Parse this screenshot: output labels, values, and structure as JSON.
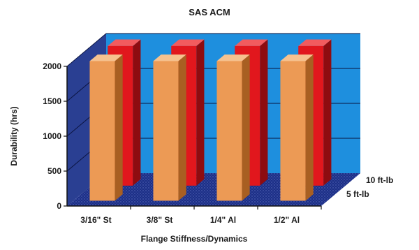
{
  "chart_data": {
    "type": "bar",
    "title": "SAS ACM",
    "xlabel": "Flange Stiffness/Dynamics",
    "ylabel": "Durability (hrs)",
    "categories": [
      "3/16\" St",
      "3/8\" St",
      "1/4\" Al",
      "1/2\" Al"
    ],
    "series": [
      {
        "name": "5 ft-lb",
        "values": [
          2000,
          2000,
          2000,
          2000
        ]
      },
      {
        "name": "10 ft-lb",
        "values": [
          2000,
          2000,
          2000,
          2000
        ]
      }
    ],
    "yticks": [
      0,
      500,
      1000,
      1500,
      2000
    ],
    "ylim": [
      0,
      2000
    ],
    "grid": true,
    "style": "3d",
    "colors": {
      "series_front": "#ec9a55",
      "series_back": "#e1171d",
      "back_wall": "#1e8fde",
      "side_wall": "#2a3f92",
      "floor": "#1c2f86"
    }
  }
}
